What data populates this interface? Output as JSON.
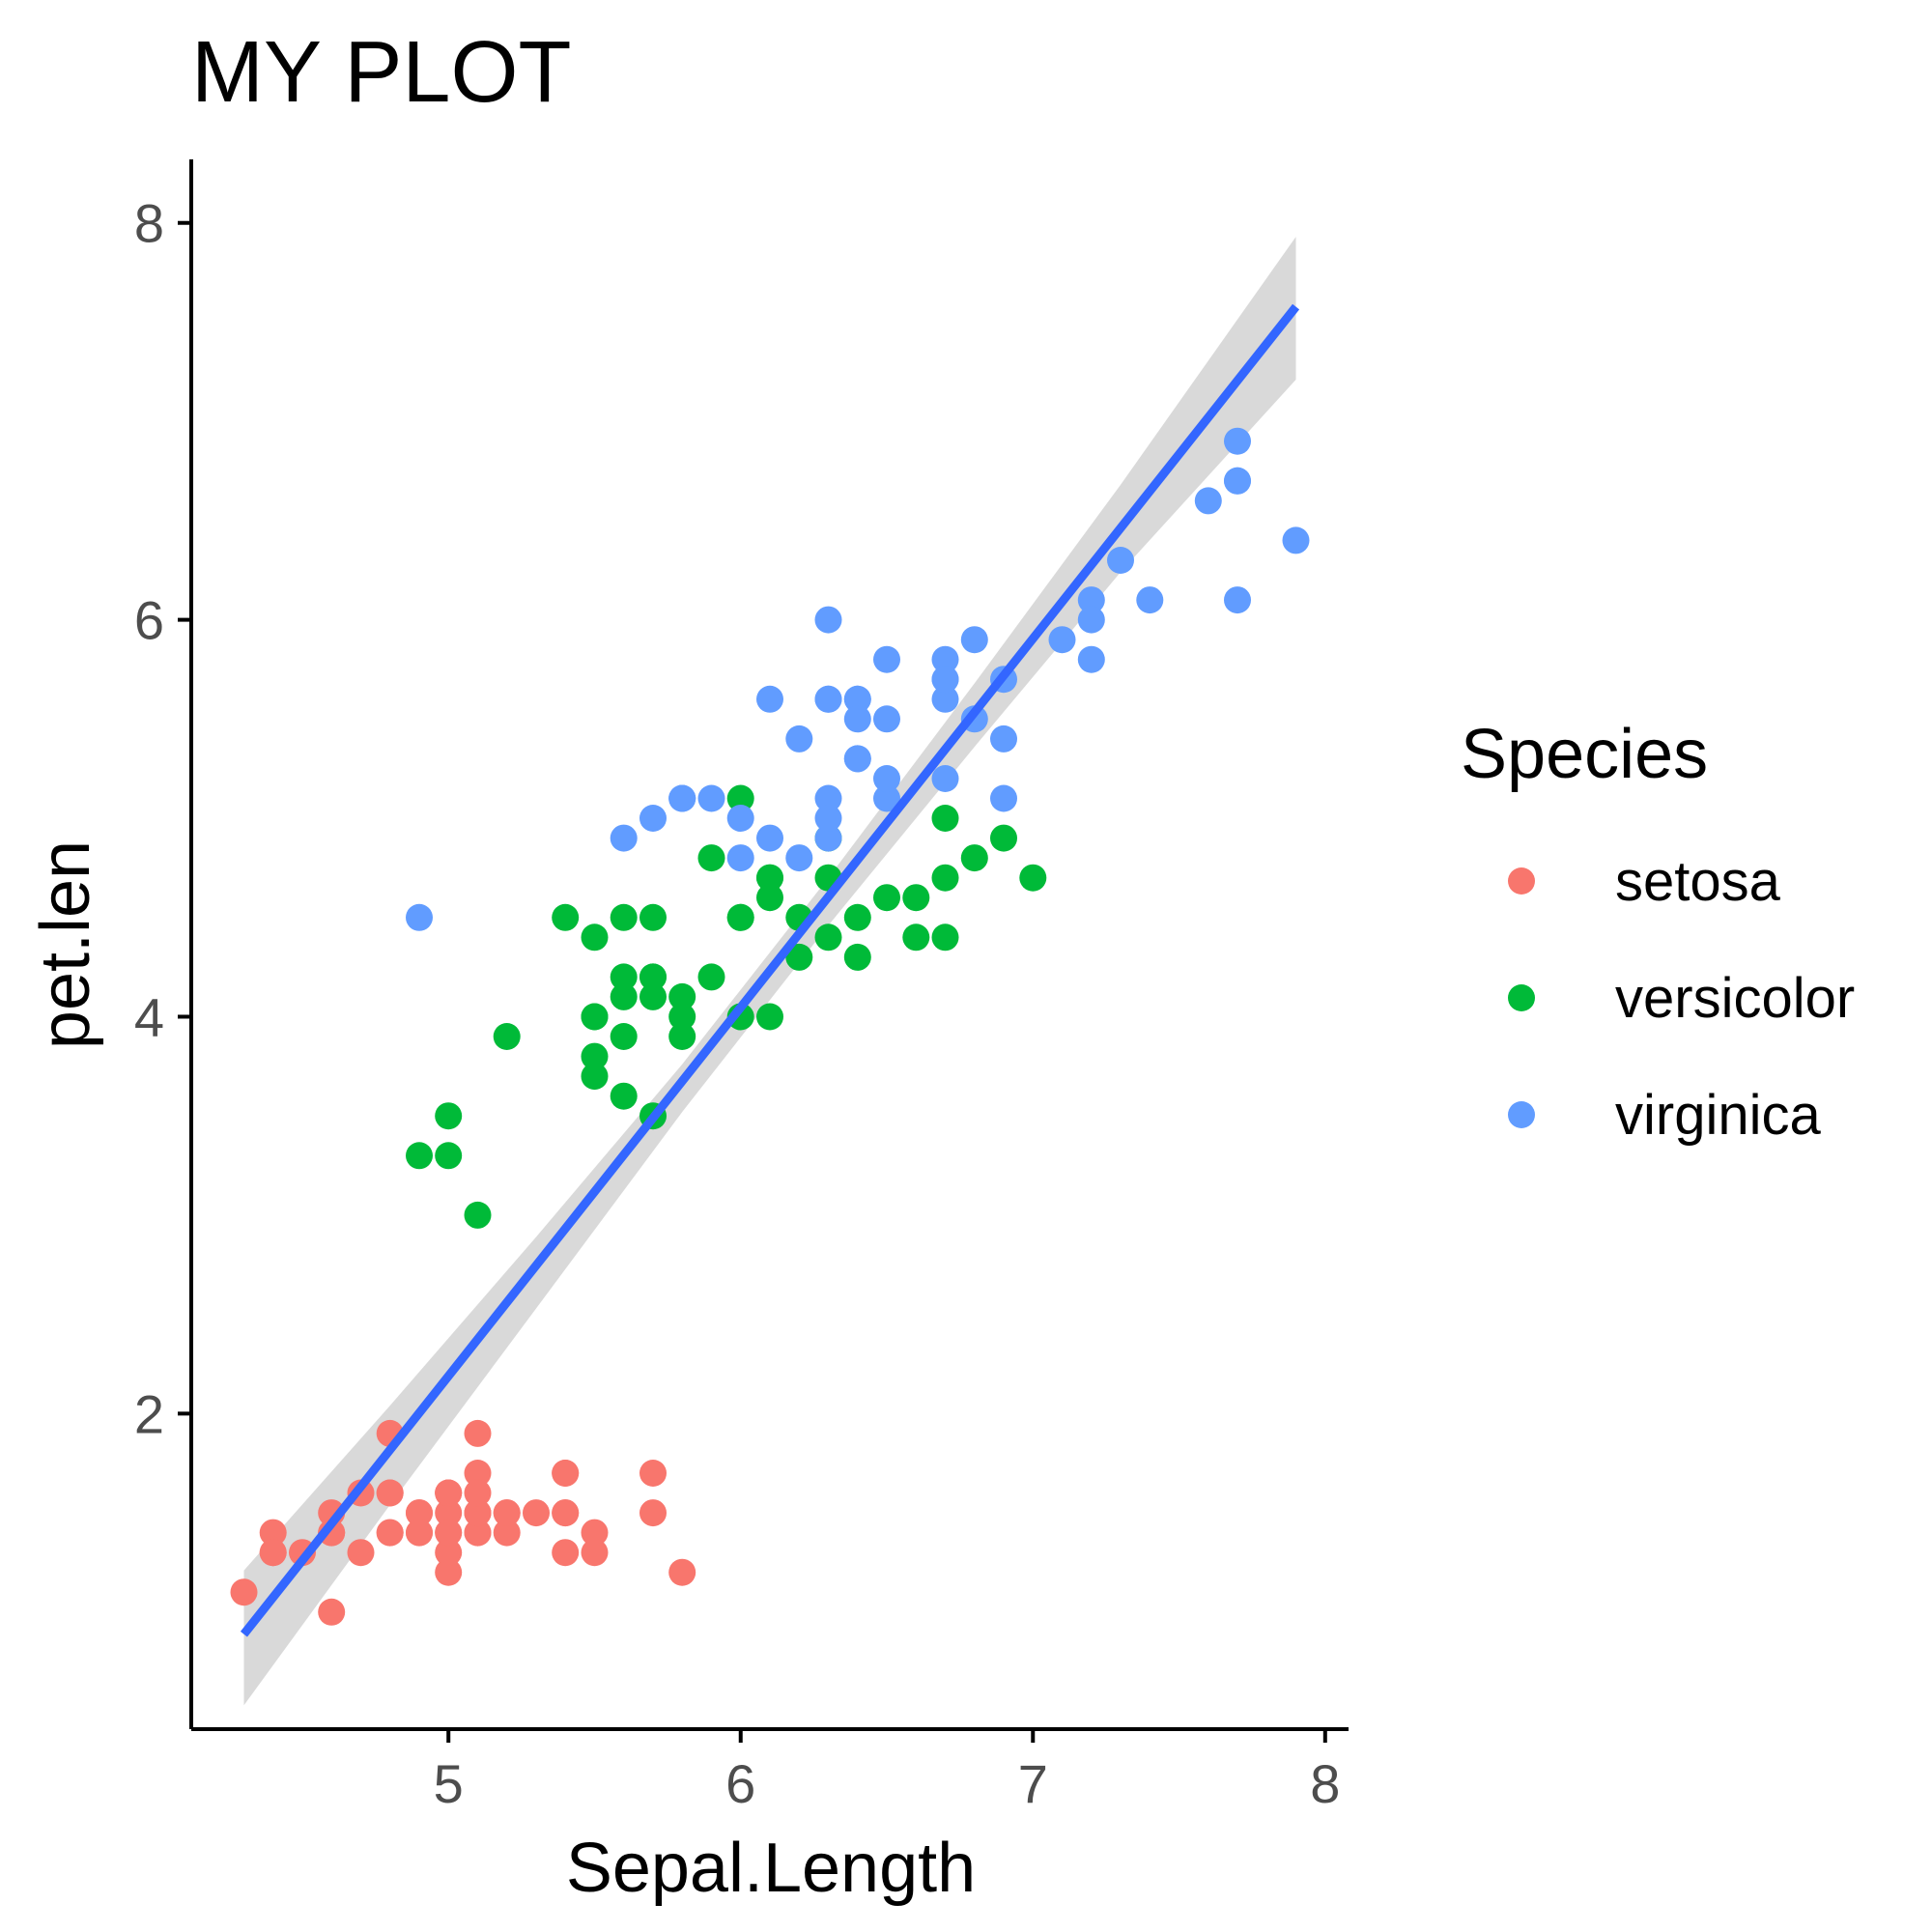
{
  "chart_data": {
    "type": "scatter",
    "title": "MY PLOT",
    "xlabel": "Sepal.Length",
    "ylabel": "pet.len",
    "xlim": [
      4.12,
      8.08
    ],
    "ylim": [
      0.41,
      8.32
    ],
    "xticks": [
      5,
      6,
      7,
      8
    ],
    "yticks": [
      2,
      4,
      6,
      8
    ],
    "grid": false,
    "legend": {
      "title": "Species",
      "placement": "right",
      "entries": [
        "setosa",
        "versicolor",
        "virginica"
      ]
    },
    "colors": {
      "setosa": "#f8766d",
      "versicolor": "#00ba38",
      "virginica": "#619cff",
      "fit_line": "#3366ff",
      "ribbon": "#cccccc",
      "axis": "#000000"
    },
    "series": [
      {
        "name": "setosa",
        "points": [
          [
            5.1,
            1.4
          ],
          [
            4.9,
            1.4
          ],
          [
            4.7,
            1.3
          ],
          [
            4.6,
            1.5
          ],
          [
            5.0,
            1.4
          ],
          [
            5.4,
            1.7
          ],
          [
            4.6,
            1.4
          ],
          [
            5.0,
            1.5
          ],
          [
            4.4,
            1.4
          ],
          [
            4.9,
            1.5
          ],
          [
            5.4,
            1.5
          ],
          [
            4.8,
            1.6
          ],
          [
            4.8,
            1.4
          ],
          [
            4.3,
            1.1
          ],
          [
            5.8,
            1.2
          ],
          [
            5.7,
            1.5
          ],
          [
            5.4,
            1.3
          ],
          [
            5.1,
            1.4
          ],
          [
            5.7,
            1.7
          ],
          [
            5.1,
            1.5
          ],
          [
            5.4,
            1.7
          ],
          [
            5.1,
            1.5
          ],
          [
            4.6,
            1.0
          ],
          [
            5.1,
            1.7
          ],
          [
            4.8,
            1.9
          ],
          [
            5.0,
            1.6
          ],
          [
            5.0,
            1.6
          ],
          [
            5.2,
            1.5
          ],
          [
            5.2,
            1.4
          ],
          [
            4.7,
            1.6
          ],
          [
            4.8,
            1.6
          ],
          [
            5.4,
            1.5
          ],
          [
            5.2,
            1.5
          ],
          [
            5.5,
            1.4
          ],
          [
            4.9,
            1.5
          ],
          [
            5.0,
            1.2
          ],
          [
            5.5,
            1.3
          ],
          [
            4.9,
            1.4
          ],
          [
            4.4,
            1.3
          ],
          [
            5.1,
            1.5
          ],
          [
            5.0,
            1.3
          ],
          [
            4.5,
            1.3
          ],
          [
            4.4,
            1.3
          ],
          [
            5.0,
            1.6
          ],
          [
            5.1,
            1.9
          ],
          [
            4.8,
            1.4
          ],
          [
            5.1,
            1.6
          ],
          [
            4.6,
            1.4
          ],
          [
            5.3,
            1.5
          ],
          [
            5.0,
            1.4
          ]
        ]
      },
      {
        "name": "versicolor",
        "points": [
          [
            7.0,
            4.7
          ],
          [
            6.4,
            4.5
          ],
          [
            6.9,
            4.9
          ],
          [
            5.5,
            4.0
          ],
          [
            6.5,
            4.6
          ],
          [
            5.7,
            4.5
          ],
          [
            6.3,
            4.7
          ],
          [
            4.9,
            3.3
          ],
          [
            6.6,
            4.6
          ],
          [
            5.2,
            3.9
          ],
          [
            5.0,
            3.5
          ],
          [
            5.9,
            4.2
          ],
          [
            6.0,
            4.0
          ],
          [
            6.1,
            4.7
          ],
          [
            5.6,
            3.6
          ],
          [
            6.7,
            4.4
          ],
          [
            5.6,
            4.5
          ],
          [
            5.8,
            4.1
          ],
          [
            6.2,
            4.5
          ],
          [
            5.6,
            3.9
          ],
          [
            5.9,
            4.8
          ],
          [
            6.1,
            4.0
          ],
          [
            6.3,
            4.9
          ],
          [
            6.1,
            4.7
          ],
          [
            6.4,
            4.3
          ],
          [
            6.6,
            4.4
          ],
          [
            6.8,
            4.8
          ],
          [
            6.7,
            5.0
          ],
          [
            6.0,
            4.5
          ],
          [
            5.7,
            3.5
          ],
          [
            5.5,
            3.8
          ],
          [
            5.5,
            3.7
          ],
          [
            5.8,
            3.9
          ],
          [
            6.0,
            5.1
          ],
          [
            5.4,
            4.5
          ],
          [
            6.0,
            4.5
          ],
          [
            6.7,
            4.7
          ],
          [
            6.3,
            4.4
          ],
          [
            5.6,
            4.1
          ],
          [
            5.5,
            4.0
          ],
          [
            5.5,
            4.4
          ],
          [
            6.1,
            4.6
          ],
          [
            5.8,
            4.0
          ],
          [
            5.0,
            3.3
          ],
          [
            5.6,
            4.2
          ],
          [
            5.7,
            4.2
          ],
          [
            5.7,
            4.2
          ],
          [
            6.2,
            4.3
          ],
          [
            5.1,
            3.0
          ],
          [
            5.7,
            4.1
          ]
        ]
      },
      {
        "name": "virginica",
        "points": [
          [
            6.3,
            6.0
          ],
          [
            5.8,
            5.1
          ],
          [
            7.1,
            5.9
          ],
          [
            6.3,
            5.6
          ],
          [
            6.5,
            5.8
          ],
          [
            7.6,
            6.6
          ],
          [
            4.9,
            4.5
          ],
          [
            7.3,
            6.3
          ],
          [
            6.7,
            5.8
          ],
          [
            7.2,
            6.1
          ],
          [
            6.5,
            5.1
          ],
          [
            6.4,
            5.3
          ],
          [
            6.8,
            5.5
          ],
          [
            5.7,
            5.0
          ],
          [
            5.8,
            5.1
          ],
          [
            6.4,
            5.3
          ],
          [
            6.5,
            5.5
          ],
          [
            7.7,
            6.7
          ],
          [
            7.7,
            6.9
          ],
          [
            6.0,
            5.0
          ],
          [
            6.9,
            5.7
          ],
          [
            5.6,
            4.9
          ],
          [
            7.7,
            6.7
          ],
          [
            6.3,
            4.9
          ],
          [
            6.7,
            5.7
          ],
          [
            7.2,
            6.0
          ],
          [
            6.2,
            4.8
          ],
          [
            6.1,
            4.9
          ],
          [
            6.4,
            5.6
          ],
          [
            7.2,
            5.8
          ],
          [
            7.4,
            6.1
          ],
          [
            7.9,
            6.4
          ],
          [
            6.4,
            5.6
          ],
          [
            6.3,
            5.1
          ],
          [
            6.1,
            5.6
          ],
          [
            7.7,
            6.1
          ],
          [
            6.3,
            5.6
          ],
          [
            6.4,
            5.5
          ],
          [
            6.0,
            4.8
          ],
          [
            6.9,
            5.4
          ],
          [
            6.7,
            5.6
          ],
          [
            6.9,
            5.1
          ],
          [
            5.8,
            5.1
          ],
          [
            6.8,
            5.9
          ],
          [
            6.7,
            5.7
          ],
          [
            6.7,
            5.2
          ],
          [
            6.3,
            5.0
          ],
          [
            6.5,
            5.2
          ],
          [
            6.2,
            5.4
          ],
          [
            5.9,
            5.1
          ]
        ]
      }
    ],
    "fit": {
      "method": "linear",
      "slope": 1.858,
      "intercept": -7.101,
      "x_range": [
        4.3,
        7.9
      ],
      "ribbon": [
        [
          4.3,
          0.53,
          1.21
        ],
        [
          4.8,
          1.54,
          2.04
        ],
        [
          5.3,
          2.53,
          2.89
        ],
        [
          5.8,
          3.52,
          3.76
        ],
        [
          6.3,
          4.46,
          4.7
        ],
        [
          6.8,
          5.36,
          5.68
        ],
        [
          7.3,
          6.24,
          6.68
        ],
        [
          7.9,
          7.21,
          7.93
        ]
      ]
    }
  }
}
